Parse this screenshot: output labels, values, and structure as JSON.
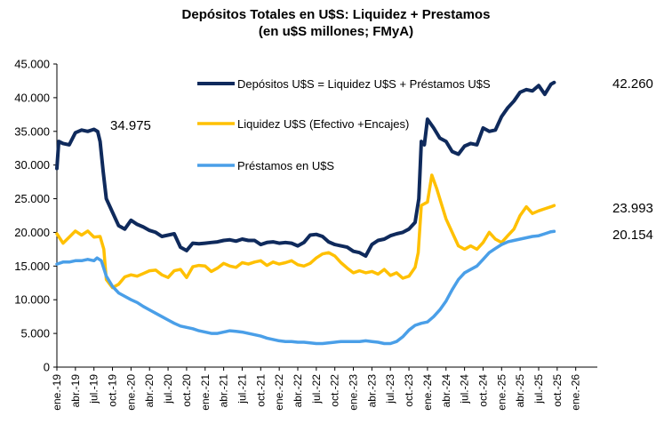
{
  "chart_data": {
    "type": "line",
    "title": "Depósitos Totales en U$S: Liquidez + Prestamos",
    "subtitle": "(en u$S millones; FMyA)",
    "ylim": [
      0,
      45000
    ],
    "y_ticks": [
      "0",
      "5.000",
      "10.000",
      "15.000",
      "20.000",
      "25.000",
      "30.000",
      "35.000",
      "40.000",
      "45.000"
    ],
    "y_tick_values": [
      0,
      5000,
      10000,
      15000,
      20000,
      25000,
      30000,
      35000,
      40000,
      45000
    ],
    "x_tick_labels": [
      "ene.-19",
      "abr.-19",
      "jul.-19",
      "oct.-19",
      "ene.-20",
      "abr.-20",
      "jul.-20",
      "oct.-20",
      "ene.-21",
      "abr.-21",
      "jul.-21",
      "oct.-21",
      "ene.-22",
      "abr.-22",
      "jul.-22",
      "oct.-22",
      "ene.-23",
      "abr.-23",
      "jul.-23",
      "oct.-23",
      "ene.-24",
      "abr.-24",
      "jul.-24",
      "oct.-24",
      "ene.-25",
      "abr.-25",
      "jul.-25",
      "oct.-25",
      "ene.-26"
    ],
    "x_range_months": [
      0,
      87.5
    ],
    "grid": false,
    "legend_position": "top-center",
    "series": [
      {
        "name": "Depósitos U$S = Liquidez U$S + Préstamos U$S",
        "color": "#0f2a5c",
        "points": [
          [
            0,
            29500
          ],
          [
            0.3,
            33500
          ],
          [
            1,
            33200
          ],
          [
            2,
            33000
          ],
          [
            3,
            34800
          ],
          [
            4,
            35200
          ],
          [
            5,
            35000
          ],
          [
            6,
            35300
          ],
          [
            6.6,
            34975
          ],
          [
            7,
            33500
          ],
          [
            7.5,
            29000
          ],
          [
            8,
            25000
          ],
          [
            9,
            23000
          ],
          [
            10,
            21000
          ],
          [
            11,
            20500
          ],
          [
            12,
            21800
          ],
          [
            13,
            21200
          ],
          [
            14,
            20800
          ],
          [
            15,
            20300
          ],
          [
            16,
            20000
          ],
          [
            17,
            19400
          ],
          [
            18,
            19600
          ],
          [
            19,
            19800
          ],
          [
            20,
            17800
          ],
          [
            21,
            17300
          ],
          [
            22,
            18400
          ],
          [
            23,
            18300
          ],
          [
            24,
            18400
          ],
          [
            25,
            18500
          ],
          [
            26,
            18600
          ],
          [
            27,
            18800
          ],
          [
            28,
            18900
          ],
          [
            29,
            18700
          ],
          [
            30,
            19000
          ],
          [
            31,
            18800
          ],
          [
            32,
            18800
          ],
          [
            33,
            18200
          ],
          [
            34,
            18500
          ],
          [
            35,
            18600
          ],
          [
            36,
            18400
          ],
          [
            37,
            18500
          ],
          [
            38,
            18400
          ],
          [
            39,
            18000
          ],
          [
            40,
            18500
          ],
          [
            41,
            19600
          ],
          [
            42,
            19700
          ],
          [
            43,
            19400
          ],
          [
            44,
            18600
          ],
          [
            45,
            18200
          ],
          [
            46,
            18000
          ],
          [
            47,
            17800
          ],
          [
            48,
            17200
          ],
          [
            49,
            17000
          ],
          [
            50,
            16500
          ],
          [
            51,
            18200
          ],
          [
            52,
            18800
          ],
          [
            53,
            19000
          ],
          [
            54,
            19500
          ],
          [
            55,
            19800
          ],
          [
            56,
            20000
          ],
          [
            57,
            20500
          ],
          [
            58,
            21500
          ],
          [
            58.6,
            25000
          ],
          [
            59,
            33500
          ],
          [
            59.5,
            33000
          ],
          [
            60,
            36800
          ],
          [
            61,
            35500
          ],
          [
            62,
            34000
          ],
          [
            63,
            33500
          ],
          [
            64,
            32000
          ],
          [
            65,
            31600
          ],
          [
            66,
            32800
          ],
          [
            67,
            33200
          ],
          [
            68,
            33000
          ],
          [
            69,
            35500
          ],
          [
            70,
            35000
          ],
          [
            71,
            35200
          ],
          [
            72,
            37200
          ],
          [
            73,
            38500
          ],
          [
            74,
            39500
          ],
          [
            75,
            40800
          ],
          [
            76,
            41200
          ],
          [
            77,
            41000
          ],
          [
            78,
            41800
          ],
          [
            79,
            40500
          ],
          [
            80,
            42000
          ],
          [
            80.5,
            42260
          ]
        ]
      },
      {
        "name": "Liquidez U$S (Efectivo +Encajes)",
        "color": "#ffc000",
        "points": [
          [
            0,
            19800
          ],
          [
            1,
            18400
          ],
          [
            2,
            19300
          ],
          [
            3,
            20200
          ],
          [
            4,
            19600
          ],
          [
            5,
            20200
          ],
          [
            6,
            19300
          ],
          [
            7,
            19400
          ],
          [
            7.6,
            17500
          ],
          [
            8,
            13000
          ],
          [
            9,
            11800
          ],
          [
            10,
            12300
          ],
          [
            11,
            13400
          ],
          [
            12,
            13700
          ],
          [
            13,
            13500
          ],
          [
            14,
            13900
          ],
          [
            15,
            14300
          ],
          [
            16,
            14400
          ],
          [
            17,
            13700
          ],
          [
            18,
            13300
          ],
          [
            19,
            14300
          ],
          [
            20,
            14500
          ],
          [
            21,
            13300
          ],
          [
            22,
            14900
          ],
          [
            23,
            15100
          ],
          [
            24,
            15000
          ],
          [
            25,
            14200
          ],
          [
            26,
            14700
          ],
          [
            27,
            15400
          ],
          [
            28,
            15000
          ],
          [
            29,
            14800
          ],
          [
            30,
            15500
          ],
          [
            31,
            15300
          ],
          [
            32,
            15600
          ],
          [
            33,
            15800
          ],
          [
            34,
            15100
          ],
          [
            35,
            15600
          ],
          [
            36,
            15300
          ],
          [
            37,
            15500
          ],
          [
            38,
            15800
          ],
          [
            39,
            15200
          ],
          [
            40,
            15000
          ],
          [
            41,
            15400
          ],
          [
            42,
            16200
          ],
          [
            43,
            16800
          ],
          [
            44,
            17000
          ],
          [
            45,
            16500
          ],
          [
            46,
            15500
          ],
          [
            47,
            14700
          ],
          [
            48,
            14000
          ],
          [
            49,
            14300
          ],
          [
            50,
            14000
          ],
          [
            51,
            14200
          ],
          [
            52,
            13800
          ],
          [
            53,
            14500
          ],
          [
            54,
            13600
          ],
          [
            55,
            14000
          ],
          [
            56,
            13200
          ],
          [
            57,
            13500
          ],
          [
            58,
            14800
          ],
          [
            58.5,
            17000
          ],
          [
            59,
            24000
          ],
          [
            60,
            24500
          ],
          [
            60.7,
            28500
          ],
          [
            61.5,
            26500
          ],
          [
            62,
            25000
          ],
          [
            63,
            22000
          ],
          [
            64,
            20000
          ],
          [
            65,
            18000
          ],
          [
            66,
            17500
          ],
          [
            67,
            18000
          ],
          [
            68,
            17500
          ],
          [
            69,
            18500
          ],
          [
            70,
            20000
          ],
          [
            71,
            19000
          ],
          [
            72,
            18500
          ],
          [
            73,
            19500
          ],
          [
            74,
            20500
          ],
          [
            75,
            22500
          ],
          [
            76,
            23800
          ],
          [
            77,
            22800
          ],
          [
            78,
            23200
          ],
          [
            79,
            23500
          ],
          [
            80,
            23800
          ],
          [
            80.5,
            23993
          ]
        ]
      },
      {
        "name": "Préstamos en U$S",
        "color": "#4a9fe8",
        "points": [
          [
            0,
            15300
          ],
          [
            1,
            15600
          ],
          [
            2,
            15600
          ],
          [
            3,
            15800
          ],
          [
            4,
            15800
          ],
          [
            5,
            16000
          ],
          [
            6,
            15800
          ],
          [
            6.5,
            16200
          ],
          [
            7.2,
            15800
          ],
          [
            8,
            13500
          ],
          [
            9,
            12000
          ],
          [
            10,
            11000
          ],
          [
            11,
            10500
          ],
          [
            12,
            10000
          ],
          [
            13,
            9600
          ],
          [
            14,
            9000
          ],
          [
            15,
            8500
          ],
          [
            16,
            8000
          ],
          [
            17,
            7500
          ],
          [
            18,
            7000
          ],
          [
            19,
            6500
          ],
          [
            20,
            6100
          ],
          [
            21,
            5900
          ],
          [
            22,
            5700
          ],
          [
            23,
            5400
          ],
          [
            24,
            5200
          ],
          [
            25,
            5000
          ],
          [
            26,
            5000
          ],
          [
            27,
            5200
          ],
          [
            28,
            5400
          ],
          [
            29,
            5300
          ],
          [
            30,
            5200
          ],
          [
            31,
            5000
          ],
          [
            32,
            4800
          ],
          [
            33,
            4600
          ],
          [
            34,
            4300
          ],
          [
            35,
            4100
          ],
          [
            36,
            3900
          ],
          [
            37,
            3800
          ],
          [
            38,
            3800
          ],
          [
            39,
            3700
          ],
          [
            40,
            3700
          ],
          [
            41,
            3600
          ],
          [
            42,
            3500
          ],
          [
            43,
            3500
          ],
          [
            44,
            3600
          ],
          [
            45,
            3700
          ],
          [
            46,
            3800
          ],
          [
            47,
            3800
          ],
          [
            48,
            3800
          ],
          [
            49,
            3800
          ],
          [
            50,
            3900
          ],
          [
            51,
            3800
          ],
          [
            52,
            3700
          ],
          [
            53,
            3500
          ],
          [
            54,
            3500
          ],
          [
            55,
            3800
          ],
          [
            56,
            4500
          ],
          [
            57,
            5500
          ],
          [
            58,
            6200
          ],
          [
            59,
            6500
          ],
          [
            60,
            6700
          ],
          [
            61,
            7500
          ],
          [
            62,
            8500
          ],
          [
            63,
            9800
          ],
          [
            64,
            11500
          ],
          [
            65,
            13000
          ],
          [
            66,
            14000
          ],
          [
            67,
            14500
          ],
          [
            68,
            15000
          ],
          [
            69,
            16000
          ],
          [
            70,
            17000
          ],
          [
            71,
            17600
          ],
          [
            72,
            18200
          ],
          [
            73,
            18600
          ],
          [
            74,
            18800
          ],
          [
            75,
            19000
          ],
          [
            76,
            19200
          ],
          [
            77,
            19400
          ],
          [
            78,
            19500
          ],
          [
            79,
            19800
          ],
          [
            80,
            20100
          ],
          [
            80.5,
            20154
          ]
        ]
      }
    ],
    "annotations": [
      {
        "text": "34.975",
        "x": 6.6,
        "y": 34975
      },
      {
        "text": "42.260",
        "x": 80.5,
        "y": 42260
      },
      {
        "text": "23.993",
        "x": 80.5,
        "y": 23993
      },
      {
        "text": "20.154",
        "x": 80.5,
        "y": 20154
      }
    ]
  }
}
